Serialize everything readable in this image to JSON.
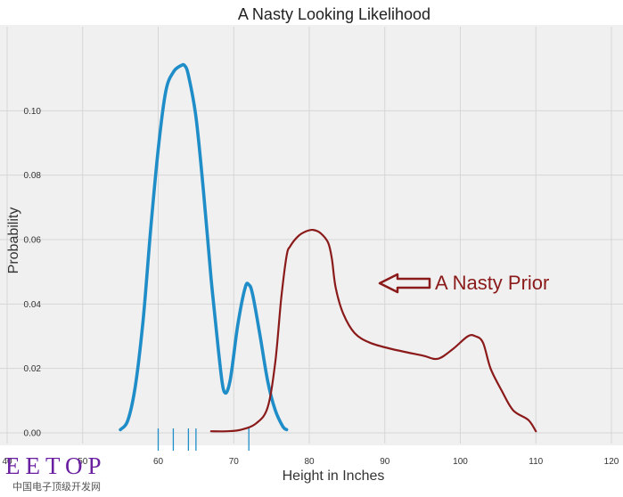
{
  "chart_data": {
    "type": "line",
    "title": "A Nasty Looking Likelihood",
    "xlabel": "Height in Inches",
    "ylabel": "Probability",
    "xlim": [
      40,
      120
    ],
    "ylim": [
      0,
      0.12
    ],
    "xticks": [
      40,
      50,
      60,
      70,
      80,
      90,
      100,
      110,
      120
    ],
    "yticks": [
      0.0,
      0.02,
      0.04,
      0.06,
      0.08,
      0.1
    ],
    "ytick_labels": [
      "0.00",
      "0.02",
      "0.04",
      "0.06",
      "0.08",
      "0.10"
    ],
    "grid": true,
    "background": "#f0f0f0",
    "series": [
      {
        "color": "#1f8dc8",
        "x": [
          55,
          56,
          57,
          58,
          59,
          60,
          61,
          62,
          63,
          63.5,
          64,
          65,
          66,
          67,
          68,
          68.7,
          69.5,
          70.5,
          71.5,
          72,
          72.5,
          73.5,
          74.5,
          75.5,
          76.5,
          77
        ],
        "y": [
          0.001,
          0.004,
          0.015,
          0.035,
          0.063,
          0.088,
          0.106,
          0.112,
          0.114,
          0.114,
          0.111,
          0.098,
          0.075,
          0.048,
          0.025,
          0.013,
          0.016,
          0.033,
          0.045,
          0.046,
          0.043,
          0.03,
          0.016,
          0.007,
          0.002,
          0.001
        ]
      },
      {
        "color": "#8b1a1a",
        "x": [
          67,
          69,
          71,
          73,
          74.5,
          75.5,
          76.3,
          77,
          77.5,
          78.5,
          79.5,
          80.5,
          81.5,
          82.5,
          83,
          83.5,
          84.5,
          86,
          88,
          91,
          95,
          97,
          99,
          101,
          102,
          103,
          104,
          105.5,
          107,
          109,
          110
        ],
        "y": [
          0.0005,
          0.0005,
          0.001,
          0.003,
          0.008,
          0.022,
          0.042,
          0.055,
          0.058,
          0.061,
          0.0625,
          0.063,
          0.062,
          0.059,
          0.054,
          0.045,
          0.037,
          0.031,
          0.028,
          0.026,
          0.024,
          0.023,
          0.026,
          0.03,
          0.03,
          0.028,
          0.02,
          0.013,
          0.007,
          0.004,
          0.0005
        ]
      }
    ],
    "rug": {
      "color": "#1f8dc8",
      "x": [
        60,
        62,
        64,
        65,
        72
      ]
    },
    "annotation": {
      "text": "A Nasty Prior",
      "color": "#8b1a1a"
    }
  },
  "watermark": {
    "latin": "EETOP",
    "cjk": "中国电子顶级开发网"
  }
}
